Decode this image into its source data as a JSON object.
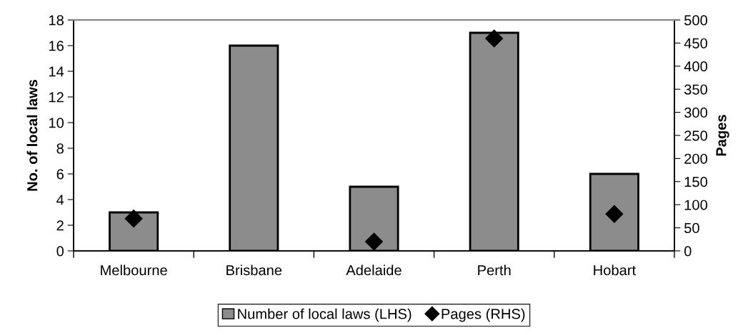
{
  "chart_data": {
    "type": "bar",
    "ylabel": "No. of local laws",
    "y2label": "Pages",
    "categories": [
      "Melbourne",
      "Brisbane",
      "Adelaide",
      "Perth",
      "Hobart"
    ],
    "series": [
      {
        "name": "Number of local laws (LHS)",
        "color": "#8c8c8c",
        "values": [
          3,
          16,
          5,
          17,
          6
        ]
      },
      {
        "name": "Pages (RHS)",
        "type": "scatter",
        "axis": "y2",
        "color": "#000000",
        "marker": "diamond",
        "values": [
          70,
          null,
          20,
          460,
          80
        ]
      }
    ],
    "ylim": [
      0,
      18
    ],
    "yticks": [
      0,
      2,
      4,
      6,
      8,
      10,
      12,
      14,
      16,
      18
    ],
    "y2lim": [
      0,
      500
    ],
    "y2ticks": [
      0,
      50,
      100,
      150,
      200,
      250,
      300,
      350,
      400,
      450,
      500
    ],
    "grid": false,
    "legend": "bottom"
  }
}
